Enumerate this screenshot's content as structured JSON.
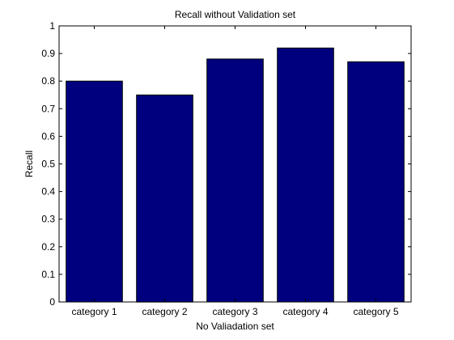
{
  "chart_data": {
    "type": "bar",
    "title": "Recall without Validation set",
    "xlabel": "No Valiadation set",
    "ylabel": "Recall",
    "categories": [
      "category 1",
      "category 2",
      "category 3",
      "category 4",
      "category 5"
    ],
    "values": [
      0.8,
      0.75,
      0.88,
      0.92,
      0.87
    ],
    "ylim": [
      0,
      1
    ],
    "yticks": [
      0,
      0.1,
      0.2,
      0.3,
      0.4,
      0.5,
      0.6,
      0.7,
      0.8,
      0.9,
      1
    ],
    "ytick_labels": [
      "0",
      "0.1",
      "0.2",
      "0.3",
      "0.4",
      "0.5",
      "0.6",
      "0.7",
      "0.8",
      "0.9",
      "1"
    ],
    "grid": false,
    "bar_color": "#00007F",
    "edge_color": "#000000"
  }
}
